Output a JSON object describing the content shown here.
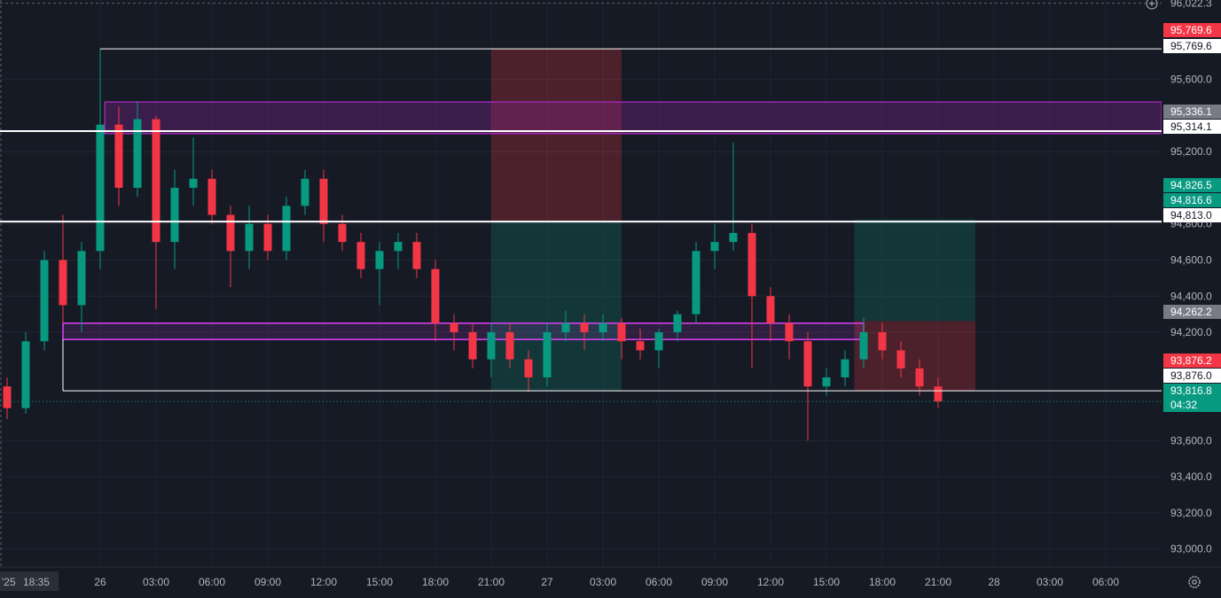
{
  "chart_data": {
    "type": "candlestick",
    "y_axis": {
      "ylim": [
        92900,
        96040
      ],
      "ticks": [
        "95,600.0",
        "95,200.0",
        "94,800.0",
        "94,600.0",
        "94,400.0",
        "94,200.0",
        "93,600.0",
        "93,400.0",
        "93,200.0",
        "93,000.0"
      ],
      "tick_values": [
        95600,
        95200,
        94800,
        94600,
        94400,
        94200,
        93600,
        93400,
        93200,
        93000
      ],
      "top_label": "96,022.3",
      "top_label_value": 96022.3
    },
    "x_axis": {
      "labels": [
        "26",
        "03:00",
        "06:00",
        "09:00",
        "12:00",
        "15:00",
        "18:00",
        "21:00",
        "27",
        "03:00",
        "06:00",
        "09:00",
        "12:00",
        "15:00",
        "18:00",
        "21:00",
        "28",
        "03:00",
        "06:00"
      ],
      "start_label": "'25",
      "crosshair_time": "18:35"
    },
    "price_tags": [
      {
        "text": "95,769.6",
        "value": 95769.6,
        "bg": "#f23645",
        "fg": "#ffffff"
      },
      {
        "text": "95,769.6",
        "value": 95769.6,
        "bg": "#ffffff",
        "fg": "#131722"
      },
      {
        "text": "95,336.1",
        "value": 95336.1,
        "bg": "#787b86",
        "fg": "#ffffff"
      },
      {
        "text": "95,314.1",
        "value": 95314.1,
        "bg": "#ffffff",
        "fg": "#131722"
      },
      {
        "text": "94,826.5",
        "value": 94826.5,
        "bg": "#089981",
        "fg": "#ffffff"
      },
      {
        "text": "94,816.6",
        "value": 94816.6,
        "bg": "#089981",
        "fg": "#ffffff"
      },
      {
        "text": "94,813.0",
        "value": 94813.0,
        "bg": "#ffffff",
        "fg": "#131722"
      },
      {
        "text": "94,262.2",
        "value": 94262.2,
        "bg": "#787b86",
        "fg": "#ffffff"
      },
      {
        "text": "93,876.2",
        "value": 93876.2,
        "bg": "#f23645",
        "fg": "#ffffff"
      },
      {
        "text": "93,876.0",
        "value": 93876.0,
        "bg": "#ffffff",
        "fg": "#131722"
      },
      {
        "text": "93,816.8",
        "value": 93816.8,
        "bg": "#089981",
        "fg": "#ffffff"
      }
    ],
    "countdown": "04:32",
    "last_price": 93816.8,
    "horizontal_lines": [
      {
        "value": 95769.6,
        "from": "26 00:00",
        "to": "end"
      },
      {
        "value": 95314.1,
        "from": "start",
        "to": "end"
      },
      {
        "value": 94813.0,
        "from": "start",
        "to": "end"
      },
      {
        "value": 93876.0,
        "from": "25 22:00",
        "to": "end"
      }
    ],
    "zones": [
      {
        "top": 95475,
        "bottom": 95300,
        "from": "26 00:15",
        "to": "end",
        "color": "#9c27b0"
      },
      {
        "top": 94250,
        "bottom": 94160,
        "from": "25 22:00",
        "to": "27 17:00",
        "color": "#e040fb"
      }
    ],
    "positions": [
      {
        "kind": "short",
        "entry": 94813.0,
        "stop": 95769.6,
        "target": 93876.0,
        "from": "26 21:00",
        "to": "27 04:00"
      },
      {
        "kind": "short",
        "entry": 94262.2,
        "stop": 93876.2,
        "target": 94826.5,
        "from": "27 16:30",
        "to": "27 23:00"
      }
    ],
    "series": [
      {
        "time": "25 19:00",
        "values": [
          93900,
          93950,
          93720,
          93780
        ]
      },
      {
        "time": "25 20:00",
        "values": [
          93780,
          94200,
          93750,
          94150
        ]
      },
      {
        "time": "25 21:00",
        "values": [
          94150,
          94650,
          94100,
          94600
        ]
      },
      {
        "time": "25 22:00",
        "values": [
          94600,
          94850,
          94250,
          94350
        ]
      },
      {
        "time": "25 23:00",
        "values": [
          94350,
          94700,
          94200,
          94650
        ]
      },
      {
        "time": "26 00:00",
        "values": [
          94650,
          95769.6,
          94550,
          95350
        ]
      },
      {
        "time": "26 01:00",
        "values": [
          95350,
          95450,
          94900,
          95000
        ]
      },
      {
        "time": "26 02:00",
        "values": [
          95000,
          95480,
          94950,
          95380
        ]
      },
      {
        "time": "26 03:00",
        "values": [
          95380,
          95400,
          94330,
          94700
        ]
      },
      {
        "time": "26 04:00",
        "values": [
          94700,
          95100,
          94550,
          95000
        ]
      },
      {
        "time": "26 05:00",
        "values": [
          95000,
          95280,
          94900,
          95050
        ]
      },
      {
        "time": "26 06:00",
        "values": [
          95050,
          95100,
          94800,
          94850
        ]
      },
      {
        "time": "26 07:00",
        "values": [
          94850,
          94900,
          94450,
          94650
        ]
      },
      {
        "time": "26 08:00",
        "values": [
          94650,
          94900,
          94550,
          94800
        ]
      },
      {
        "time": "26 09:00",
        "values": [
          94800,
          94850,
          94600,
          94650
        ]
      },
      {
        "time": "26 10:00",
        "values": [
          94650,
          94950,
          94600,
          94900
        ]
      },
      {
        "time": "26 11:00",
        "values": [
          94900,
          95100,
          94850,
          95050
        ]
      },
      {
        "time": "26 12:00",
        "values": [
          95050,
          95100,
          94700,
          94800
        ]
      },
      {
        "time": "26 13:00",
        "values": [
          94800,
          94850,
          94650,
          94700
        ]
      },
      {
        "time": "26 14:00",
        "values": [
          94700,
          94750,
          94500,
          94550
        ]
      },
      {
        "time": "26 15:00",
        "values": [
          94550,
          94700,
          94350,
          94650
        ]
      },
      {
        "time": "26 16:00",
        "values": [
          94650,
          94750,
          94550,
          94700
        ]
      },
      {
        "time": "26 17:00",
        "values": [
          94700,
          94750,
          94500,
          94550
        ]
      },
      {
        "time": "26 18:00",
        "values": [
          94550,
          94600,
          94150,
          94250
        ]
      },
      {
        "time": "26 19:00",
        "values": [
          94250,
          94300,
          94100,
          94200
        ]
      },
      {
        "time": "26 20:00",
        "values": [
          94200,
          94250,
          94000,
          94050
        ]
      },
      {
        "time": "26 21:00",
        "values": [
          94050,
          94250,
          93950,
          94200
        ]
      },
      {
        "time": "26 22:00",
        "values": [
          94200,
          94250,
          94000,
          94050
        ]
      },
      {
        "time": "26 23:00",
        "values": [
          94050,
          94100,
          93870,
          93950
        ]
      },
      {
        "time": "27 00:00",
        "values": [
          93950,
          94250,
          93900,
          94200
        ]
      },
      {
        "time": "27 01:00",
        "values": [
          94200,
          94320,
          94150,
          94250
        ]
      },
      {
        "time": "27 02:00",
        "values": [
          94250,
          94300,
          94100,
          94200
        ]
      },
      {
        "time": "27 03:00",
        "values": [
          94200,
          94300,
          94150,
          94250
        ]
      },
      {
        "time": "27 04:00",
        "values": [
          94250,
          94280,
          94050,
          94150
        ]
      },
      {
        "time": "27 05:00",
        "values": [
          94150,
          94220,
          94050,
          94100
        ]
      },
      {
        "time": "27 06:00",
        "values": [
          94100,
          94220,
          94000,
          94200
        ]
      },
      {
        "time": "27 07:00",
        "values": [
          94200,
          94320,
          94150,
          94300
        ]
      },
      {
        "time": "27 08:00",
        "values": [
          94300,
          94700,
          94250,
          94650
        ]
      },
      {
        "time": "27 09:00",
        "values": [
          94650,
          94800,
          94550,
          94700
        ]
      },
      {
        "time": "27 10:00",
        "values": [
          94700,
          95250,
          94650,
          94750
        ]
      },
      {
        "time": "27 11:00",
        "values": [
          94750,
          94800,
          94000,
          94400
        ]
      },
      {
        "time": "27 12:00",
        "values": [
          94400,
          94450,
          94150,
          94250
        ]
      },
      {
        "time": "27 13:00",
        "values": [
          94250,
          94300,
          94050,
          94150
        ]
      },
      {
        "time": "27 14:00",
        "values": [
          94150,
          94200,
          93600,
          93900
        ]
      },
      {
        "time": "27 15:00",
        "values": [
          93900,
          94000,
          93850,
          93950
        ]
      },
      {
        "time": "27 16:00",
        "values": [
          93950,
          94100,
          93900,
          94050
        ]
      },
      {
        "time": "27 17:00",
        "values": [
          94050,
          94280,
          94000,
          94200
        ]
      },
      {
        "time": "27 18:00",
        "values": [
          94200,
          94250,
          94050,
          94100
        ]
      },
      {
        "time": "27 19:00",
        "values": [
          94100,
          94150,
          93950,
          94000
        ]
      },
      {
        "time": "27 20:00",
        "values": [
          94000,
          94050,
          93850,
          93900
        ]
      },
      {
        "time": "27 21:00",
        "values": [
          93900,
          93950,
          93780,
          93816.8
        ]
      }
    ]
  }
}
